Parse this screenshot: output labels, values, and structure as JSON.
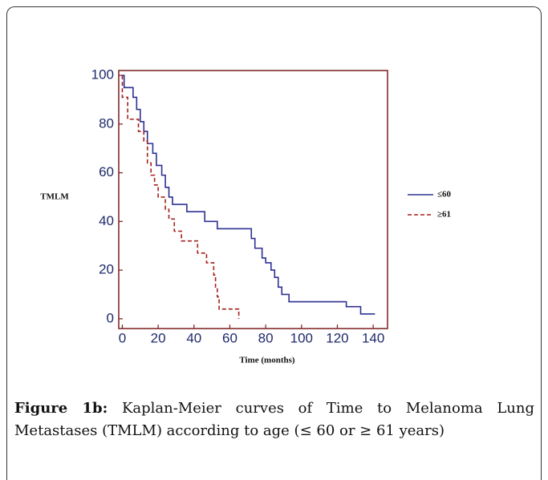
{
  "chart_data": {
    "type": "line",
    "step": true,
    "ylabel": "TMLM",
    "xlabel": "Time (months)",
    "xlim": [
      -2,
      148
    ],
    "ylim": [
      -4,
      102
    ],
    "xticks": [
      0,
      20,
      40,
      60,
      80,
      100,
      120,
      140
    ],
    "yticks": [
      0,
      20,
      40,
      60,
      80,
      100
    ],
    "axis_color": "#7a1e1e",
    "series": [
      {
        "name": "≤60",
        "color": "#2e3192",
        "dash": false,
        "x": [
          0,
          1,
          1,
          6,
          6,
          8,
          8,
          10,
          10,
          12,
          12,
          14,
          14,
          17,
          17,
          19,
          19,
          22,
          22,
          24,
          24,
          26,
          26,
          28,
          28,
          36,
          36,
          46,
          46,
          53,
          53,
          72,
          72,
          74,
          74,
          78,
          78,
          80,
          80,
          83,
          83,
          85,
          85,
          87,
          87,
          89,
          89,
          93,
          93,
          125,
          125,
          133,
          133,
          141
        ],
        "values": [
          100,
          100,
          95,
          95,
          91,
          91,
          86,
          86,
          81,
          81,
          77,
          77,
          72,
          72,
          68,
          68,
          63,
          63,
          59,
          59,
          54,
          54,
          50,
          50,
          47,
          47,
          44,
          44,
          40,
          40,
          37,
          37,
          33,
          33,
          29,
          29,
          25,
          25,
          23,
          23,
          20,
          20,
          17,
          17,
          13,
          13,
          10,
          10,
          7,
          7,
          5,
          5,
          2,
          2
        ]
      },
      {
        "name": "≥61",
        "color": "#a3201e",
        "dash": true,
        "x": [
          0,
          0,
          3,
          3,
          9,
          9,
          12,
          12,
          14,
          14,
          16,
          16,
          18,
          18,
          20,
          20,
          24,
          24,
          26,
          26,
          29,
          29,
          33,
          33,
          42,
          42,
          47,
          47,
          51,
          51,
          52,
          52,
          53,
          53,
          54,
          54,
          65,
          65
        ],
        "values": [
          100,
          91,
          91,
          82,
          82,
          77,
          77,
          73,
          73,
          64,
          64,
          59,
          59,
          55,
          55,
          50,
          50,
          45,
          45,
          41,
          41,
          36,
          36,
          32,
          32,
          27,
          27,
          23,
          23,
          18,
          18,
          13,
          13,
          9,
          9,
          4,
          4,
          0
        ]
      }
    ]
  },
  "caption": {
    "label": "Figure 1b:",
    "text": "Kaplan-Meier curves of Time to Melanoma Lung Metastases (TMLM) according to age (≤ 60 or ≥ 61 years)"
  }
}
